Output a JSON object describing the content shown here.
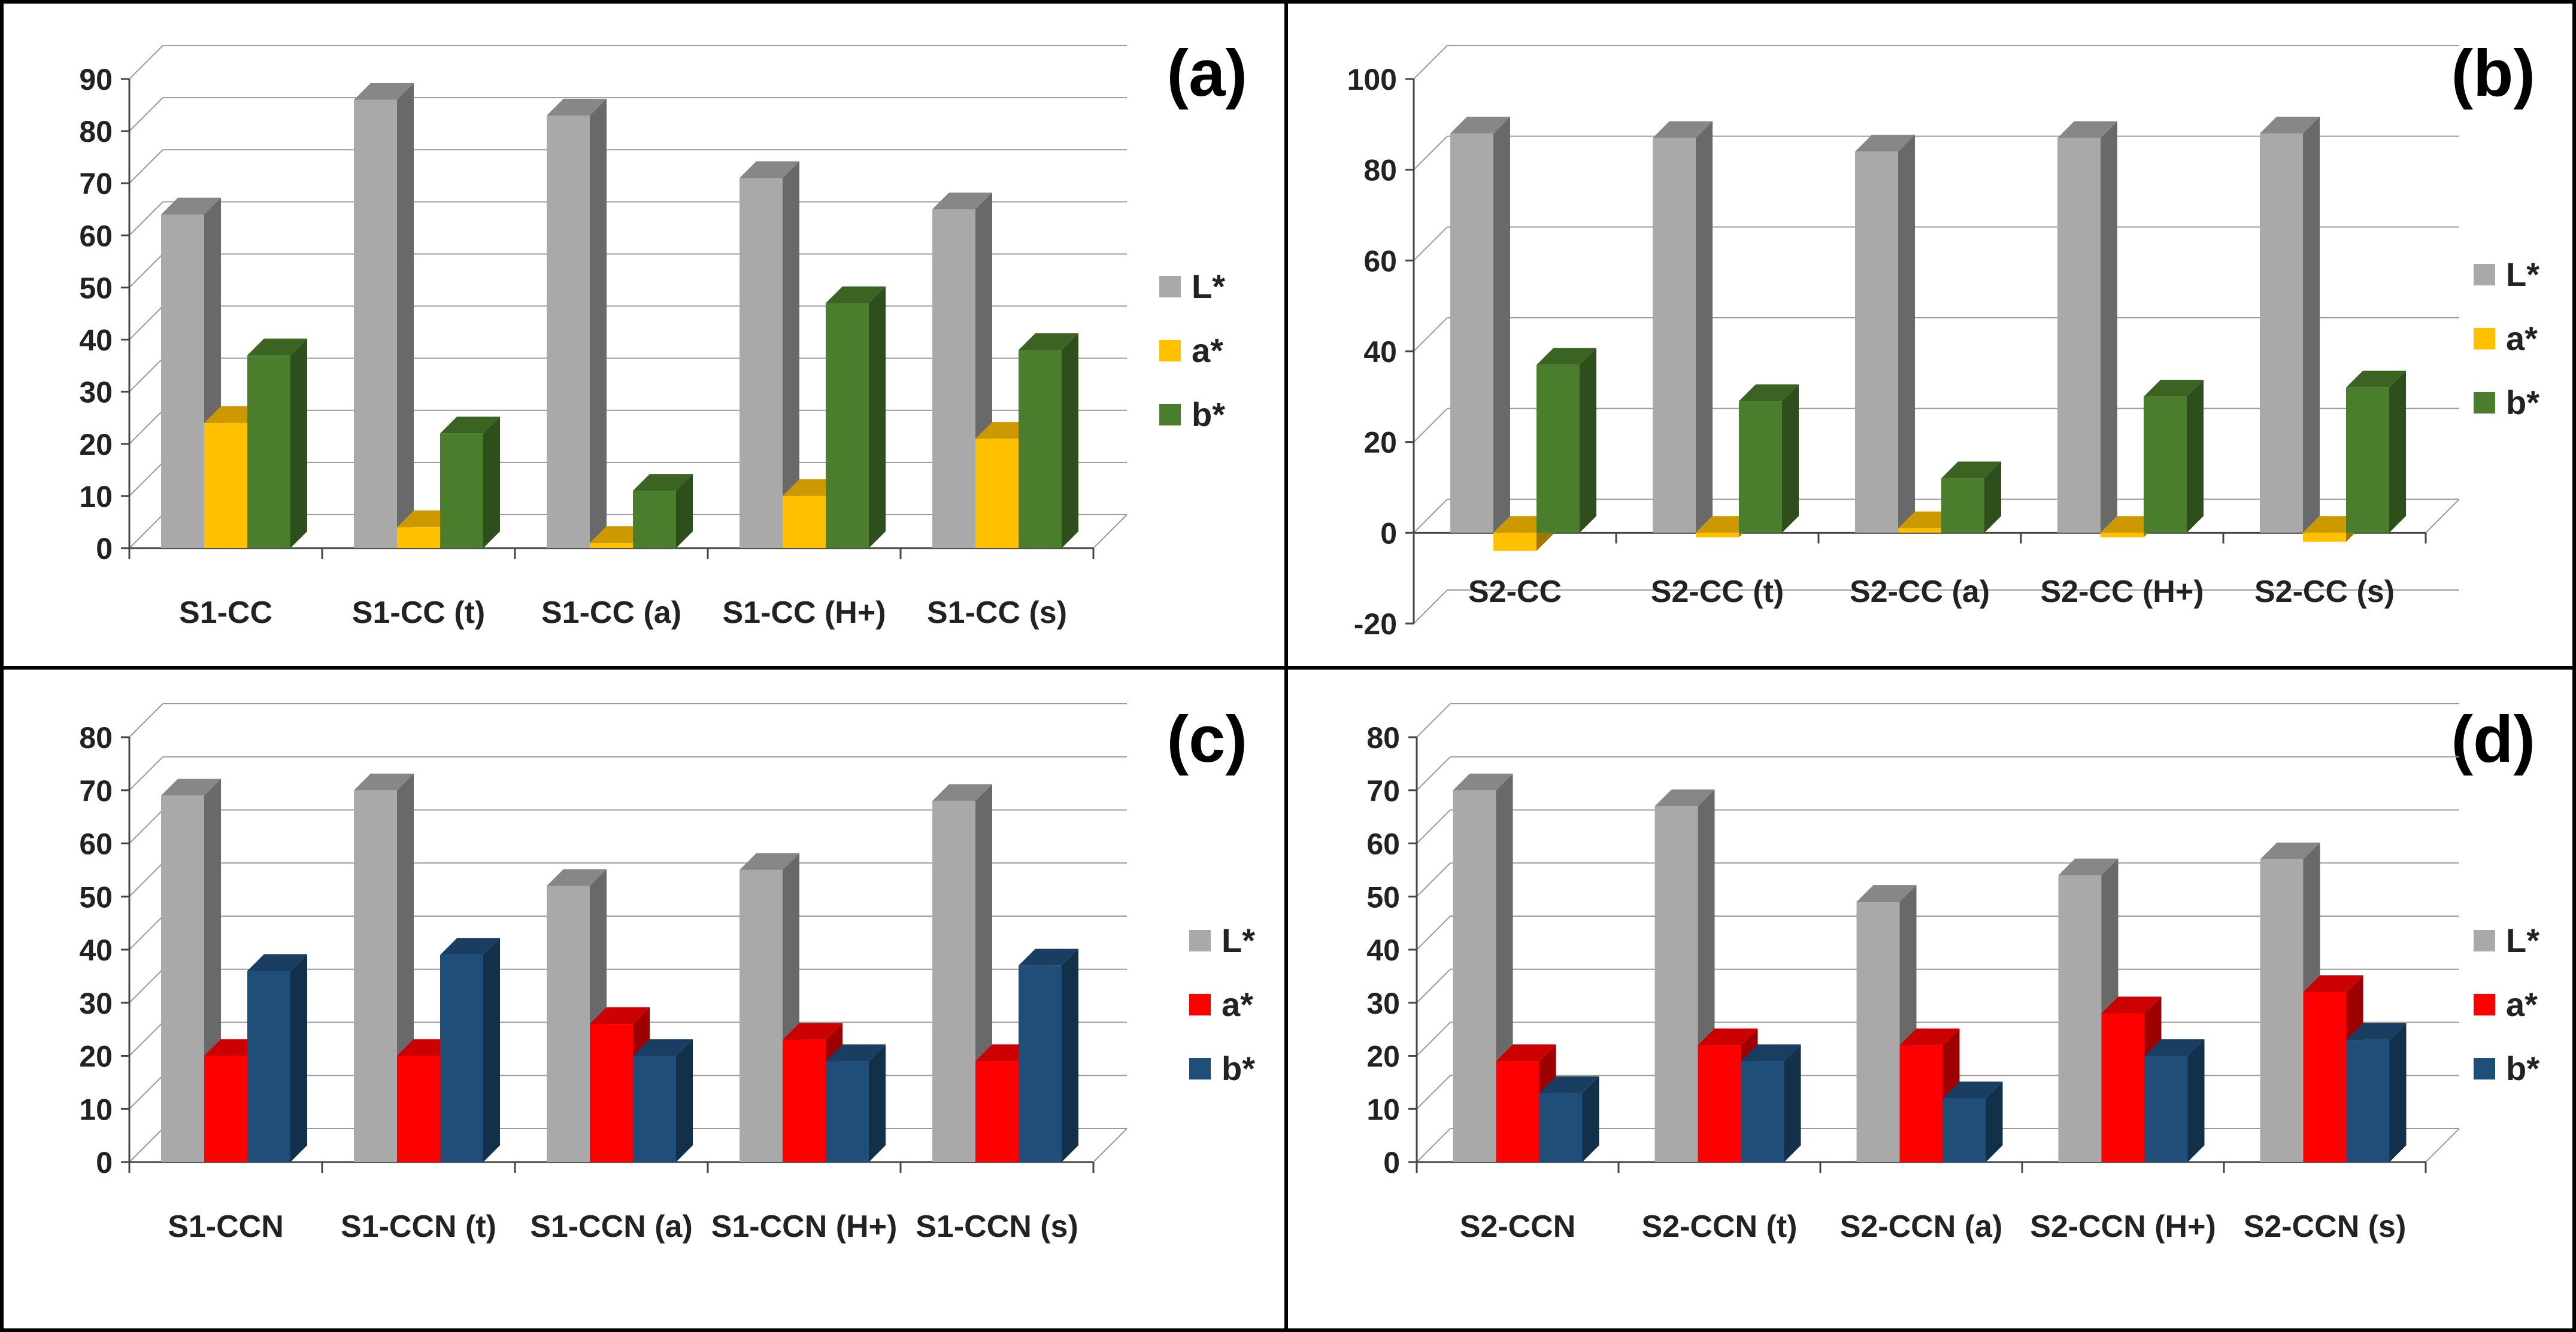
{
  "chart_data": [
    {
      "panel": "(a)",
      "type": "bar",
      "title": "(a)",
      "categories": [
        "S1-CC",
        "S1-CC (t)",
        "S1-CC (a)",
        "S1-CC (H+)",
        "S1-CC (s)"
      ],
      "series": [
        {
          "name": "L*",
          "color": "#a9a9a9",
          "values": [
            64,
            86,
            83,
            71,
            65
          ]
        },
        {
          "name": "a*",
          "color": "#ffc000",
          "values": [
            24,
            4,
            1,
            10,
            21
          ]
        },
        {
          "name": "b*",
          "color": "#4a7d2c",
          "values": [
            37,
            22,
            11,
            47,
            38
          ]
        }
      ],
      "ylim": [
        0,
        90
      ],
      "yticks": [
        0,
        10,
        20,
        30,
        40,
        50,
        60,
        70,
        80,
        90
      ],
      "xlabel": "",
      "ylabel": "",
      "grid": true,
      "legend": "right"
    },
    {
      "panel": "(b)",
      "type": "bar",
      "title": "(b)",
      "categories": [
        "S2-CC",
        "S2-CC (t)",
        "S2-CC (a)",
        "S2-CC (H+)",
        "S2-CC (s)"
      ],
      "series": [
        {
          "name": "L*",
          "color": "#a9a9a9",
          "values": [
            88,
            87,
            84,
            87,
            88
          ]
        },
        {
          "name": "a*",
          "color": "#ffc000",
          "values": [
            -4,
            -1,
            1,
            -1,
            -2
          ]
        },
        {
          "name": "b*",
          "color": "#4a7d2c",
          "values": [
            37,
            29,
            12,
            30,
            32
          ]
        }
      ],
      "ylim": [
        -20,
        100
      ],
      "yticks": [
        -20,
        0,
        20,
        40,
        60,
        80,
        100
      ],
      "xlabel": "",
      "ylabel": "",
      "grid": true,
      "legend": "right"
    },
    {
      "panel": "(c)",
      "type": "bar",
      "title": "(c)",
      "categories": [
        "S1-CCN",
        "S1-CCN (t)",
        "S1-CCN (a)",
        "S1-CCN (H+)",
        "S1-CCN (s)"
      ],
      "series": [
        {
          "name": "L*",
          "color": "#a9a9a9",
          "values": [
            69,
            70,
            52,
            55,
            68
          ]
        },
        {
          "name": "a*",
          "color": "#ff0000",
          "values": [
            20,
            20,
            26,
            23,
            19
          ]
        },
        {
          "name": "b*",
          "color": "#1f4e79",
          "values": [
            36,
            39,
            20,
            19,
            37
          ]
        }
      ],
      "ylim": [
        0,
        80
      ],
      "yticks": [
        0,
        10,
        20,
        30,
        40,
        50,
        60,
        70,
        80
      ],
      "xlabel": "",
      "ylabel": "",
      "grid": true,
      "legend": "right"
    },
    {
      "panel": "(d)",
      "type": "bar",
      "title": "(d)",
      "categories": [
        "S2-CCN",
        "S2-CCN (t)",
        "S2-CCN (a)",
        "S2-CCN (H+)",
        "S2-CCN (s)"
      ],
      "series": [
        {
          "name": "L*",
          "color": "#a9a9a9",
          "values": [
            70,
            67,
            49,
            54,
            57
          ]
        },
        {
          "name": "a*",
          "color": "#ff0000",
          "values": [
            19,
            22,
            22,
            28,
            32
          ]
        },
        {
          "name": "b*",
          "color": "#1f4e79",
          "values": [
            13,
            19,
            12,
            20,
            23
          ]
        }
      ],
      "ylim": [
        0,
        80
      ],
      "yticks": [
        0,
        10,
        20,
        30,
        40,
        50,
        60,
        70,
        80
      ],
      "xlabel": "",
      "ylabel": "",
      "grid": true,
      "legend": "right"
    }
  ]
}
